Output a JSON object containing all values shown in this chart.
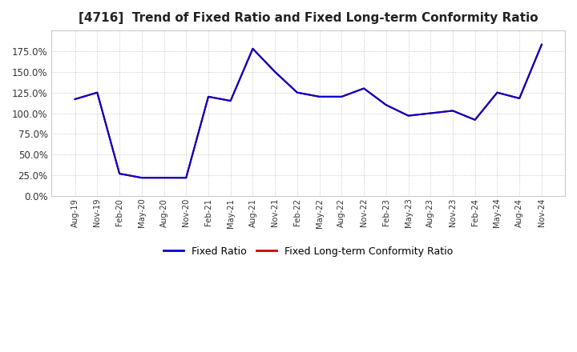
{
  "title": "[4716]  Trend of Fixed Ratio and Fixed Long-term Conformity Ratio",
  "title_fontsize": 11,
  "legend_labels": [
    "Fixed Ratio",
    "Fixed Long-term Conformity Ratio"
  ],
  "legend_colors": [
    "#0000cc",
    "#cc0000"
  ],
  "x_labels": [
    "Aug-19",
    "Nov-19",
    "Feb-20",
    "May-20",
    "Aug-20",
    "Nov-20",
    "Feb-21",
    "May-21",
    "Aug-21",
    "Nov-21",
    "Feb-22",
    "May-22",
    "Aug-22",
    "Nov-22",
    "Feb-23",
    "May-23",
    "Aug-23",
    "Nov-23",
    "Feb-24",
    "May-24",
    "Aug-24",
    "Nov-24"
  ],
  "fixed_ratio": [
    117,
    125,
    27,
    22,
    22,
    22,
    120,
    115,
    178,
    150,
    125,
    120,
    120,
    130,
    110,
    97,
    100,
    103,
    92,
    125,
    118,
    183
  ],
  "fixed_lt_conformity": [
    117,
    125,
    27,
    22,
    22,
    22,
    120,
    115,
    178,
    150,
    125,
    120,
    120,
    130,
    110,
    97,
    100,
    103,
    92,
    125,
    118,
    183
  ],
  "ylim": [
    0,
    200
  ],
  "yticks": [
    0,
    25,
    50,
    75,
    100,
    125,
    150,
    175
  ],
  "background_color": "#ffffff",
  "grid_color": "#bbbbbb",
  "plot_bg_color": "#ffffff"
}
